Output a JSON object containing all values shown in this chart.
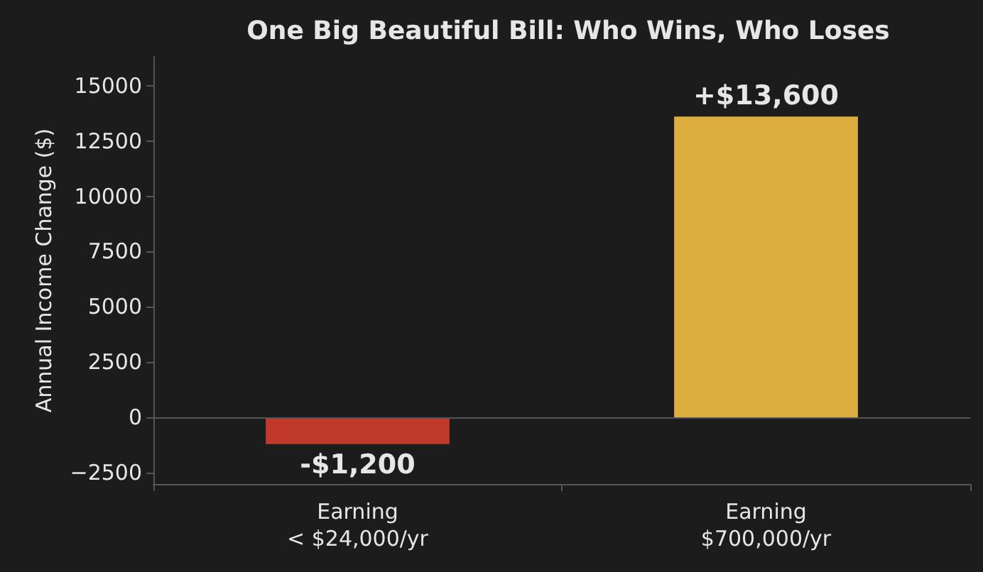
{
  "chart_data": {
    "type": "bar",
    "title": "One Big Beautiful Bill: Who Wins, Who Loses",
    "ylabel": "Annual Income Change ($)",
    "categories": [
      "Earning\n< $24,000/yr",
      "Earning\n$700,000/yr"
    ],
    "values": [
      -1200,
      13600
    ],
    "colors": [
      "#c0392b",
      "#dcae40"
    ],
    "value_labels": [
      "-$1,200",
      "+$13,600"
    ],
    "ylim": [
      -3000,
      16300
    ],
    "yticks": [
      {
        "value": -2500,
        "label": "−2500"
      },
      0,
      2500,
      5000,
      7500,
      10000,
      12500,
      15000
    ],
    "ref_lines": [
      {
        "axis": "y",
        "value": 0,
        "color": "#555555"
      }
    ],
    "grid": false
  }
}
